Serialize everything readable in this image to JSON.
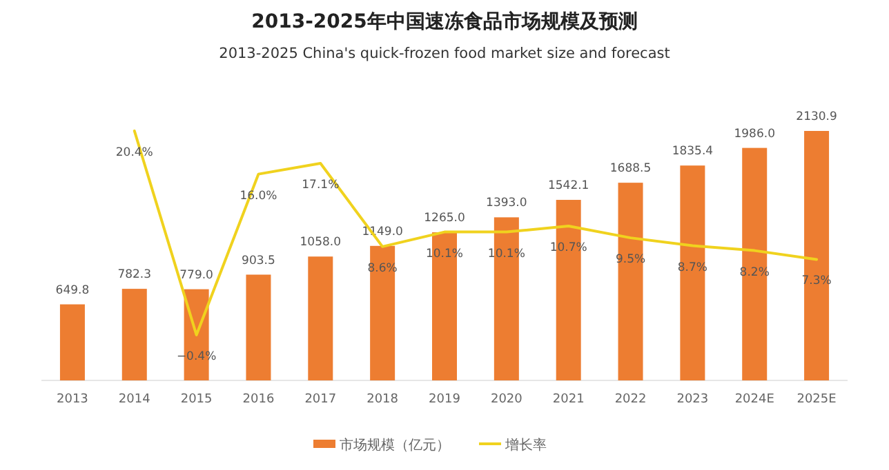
{
  "chart_data": {
    "type": "bar",
    "title": "2013-2025年中国速冻食品市场规模及预测",
    "subtitle": "2013-2025 China's quick-frozen food market size and forecast",
    "categories": [
      "2013",
      "2014",
      "2015",
      "2016",
      "2017",
      "2018",
      "2019",
      "2020",
      "2021",
      "2022",
      "2023",
      "2024E",
      "2025E"
    ],
    "series": [
      {
        "name": "市场规模（亿元）",
        "color": "#ed7d31",
        "values": [
          649.8,
          782.3,
          779.0,
          903.5,
          1058.0,
          1149.0,
          1265.0,
          1393.0,
          1542.1,
          1688.5,
          1835.4,
          1986.0,
          2130.9
        ],
        "value_labels": [
          "649.8",
          "782.3",
          "779.0",
          "903.5",
          "1058.0",
          "1149.0",
          "1265.0",
          "1393.0",
          "1542.1",
          "1688.5",
          "1835.4",
          "1986.0",
          "2130.9"
        ]
      },
      {
        "name": "增长率",
        "type": "line",
        "axis": "y2",
        "color": "#f0d21e",
        "values": [
          null,
          20.4,
          -0.4,
          16.0,
          17.1,
          8.6,
          10.1,
          10.1,
          10.7,
          9.5,
          8.7,
          8.2,
          7.3
        ],
        "value_labels": [
          null,
          "20.4%",
          "−0.4%",
          "16.0%",
          "17.1%",
          "8.6%",
          "10.1%",
          "10.1%",
          "10.7%",
          "9.5%",
          "8.7%",
          "8.2%",
          "7.3%"
        ]
      }
    ],
    "legend": "bottom"
  }
}
